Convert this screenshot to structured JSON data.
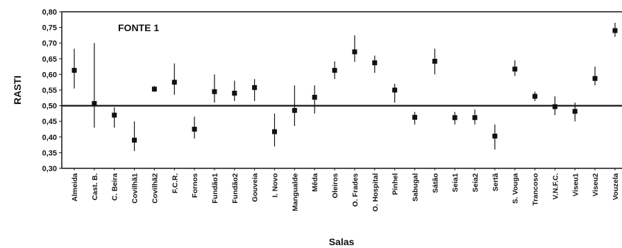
{
  "chart_data": {
    "type": "scatter",
    "annotation": "FONTE 1",
    "xlabel": "Salas",
    "ylabel": "RASTI",
    "ylim": [
      0.3,
      0.8
    ],
    "yticks": [
      "0,30",
      "0,35",
      "0,40",
      "0,45",
      "0,50",
      "0,55",
      "0,60",
      "0,65",
      "0,70",
      "0,75",
      "0,80"
    ],
    "reference_line": 0.5,
    "grid": false,
    "categories": [
      "Almeida",
      "Cast. B.",
      "C. Beira",
      "Covilhã1",
      "Covilhã2",
      "F.C.R.",
      "Fornos",
      "Fundão1",
      "Fundão2",
      "Gouveia",
      "I. Novo",
      "Mangualde",
      "Mêda",
      "Oleiros",
      "O. Frades",
      "O. Hospital",
      "Pinhel",
      "Sabugal",
      "Sátão",
      "Seia1",
      "Seia2",
      "Sertã",
      "S. Vouga",
      "Trancoso",
      "V.N.F.C.",
      "Viseu1",
      "Viseu2",
      "Vouzela"
    ],
    "values": [
      0.613,
      0.507,
      0.47,
      0.39,
      0.553,
      0.575,
      0.425,
      0.545,
      0.54,
      0.558,
      0.417,
      0.485,
      0.527,
      0.613,
      0.672,
      0.637,
      0.55,
      0.463,
      0.642,
      0.462,
      0.462,
      0.403,
      0.617,
      0.53,
      0.497,
      0.482,
      0.587,
      0.74
    ],
    "error_low": [
      0.555,
      0.43,
      0.43,
      0.355,
      0.545,
      0.535,
      0.395,
      0.51,
      0.515,
      0.515,
      0.37,
      0.435,
      0.475,
      0.585,
      0.64,
      0.605,
      0.51,
      0.44,
      0.6,
      0.44,
      0.44,
      0.36,
      0.595,
      0.515,
      0.47,
      0.45,
      0.565,
      0.72
    ],
    "error_high": [
      0.682,
      0.7,
      0.495,
      0.45,
      0.563,
      0.635,
      0.465,
      0.6,
      0.58,
      0.585,
      0.475,
      0.565,
      0.565,
      0.642,
      0.725,
      0.66,
      0.57,
      0.48,
      0.682,
      0.48,
      0.488,
      0.44,
      0.645,
      0.545,
      0.53,
      0.51,
      0.625,
      0.765
    ]
  }
}
